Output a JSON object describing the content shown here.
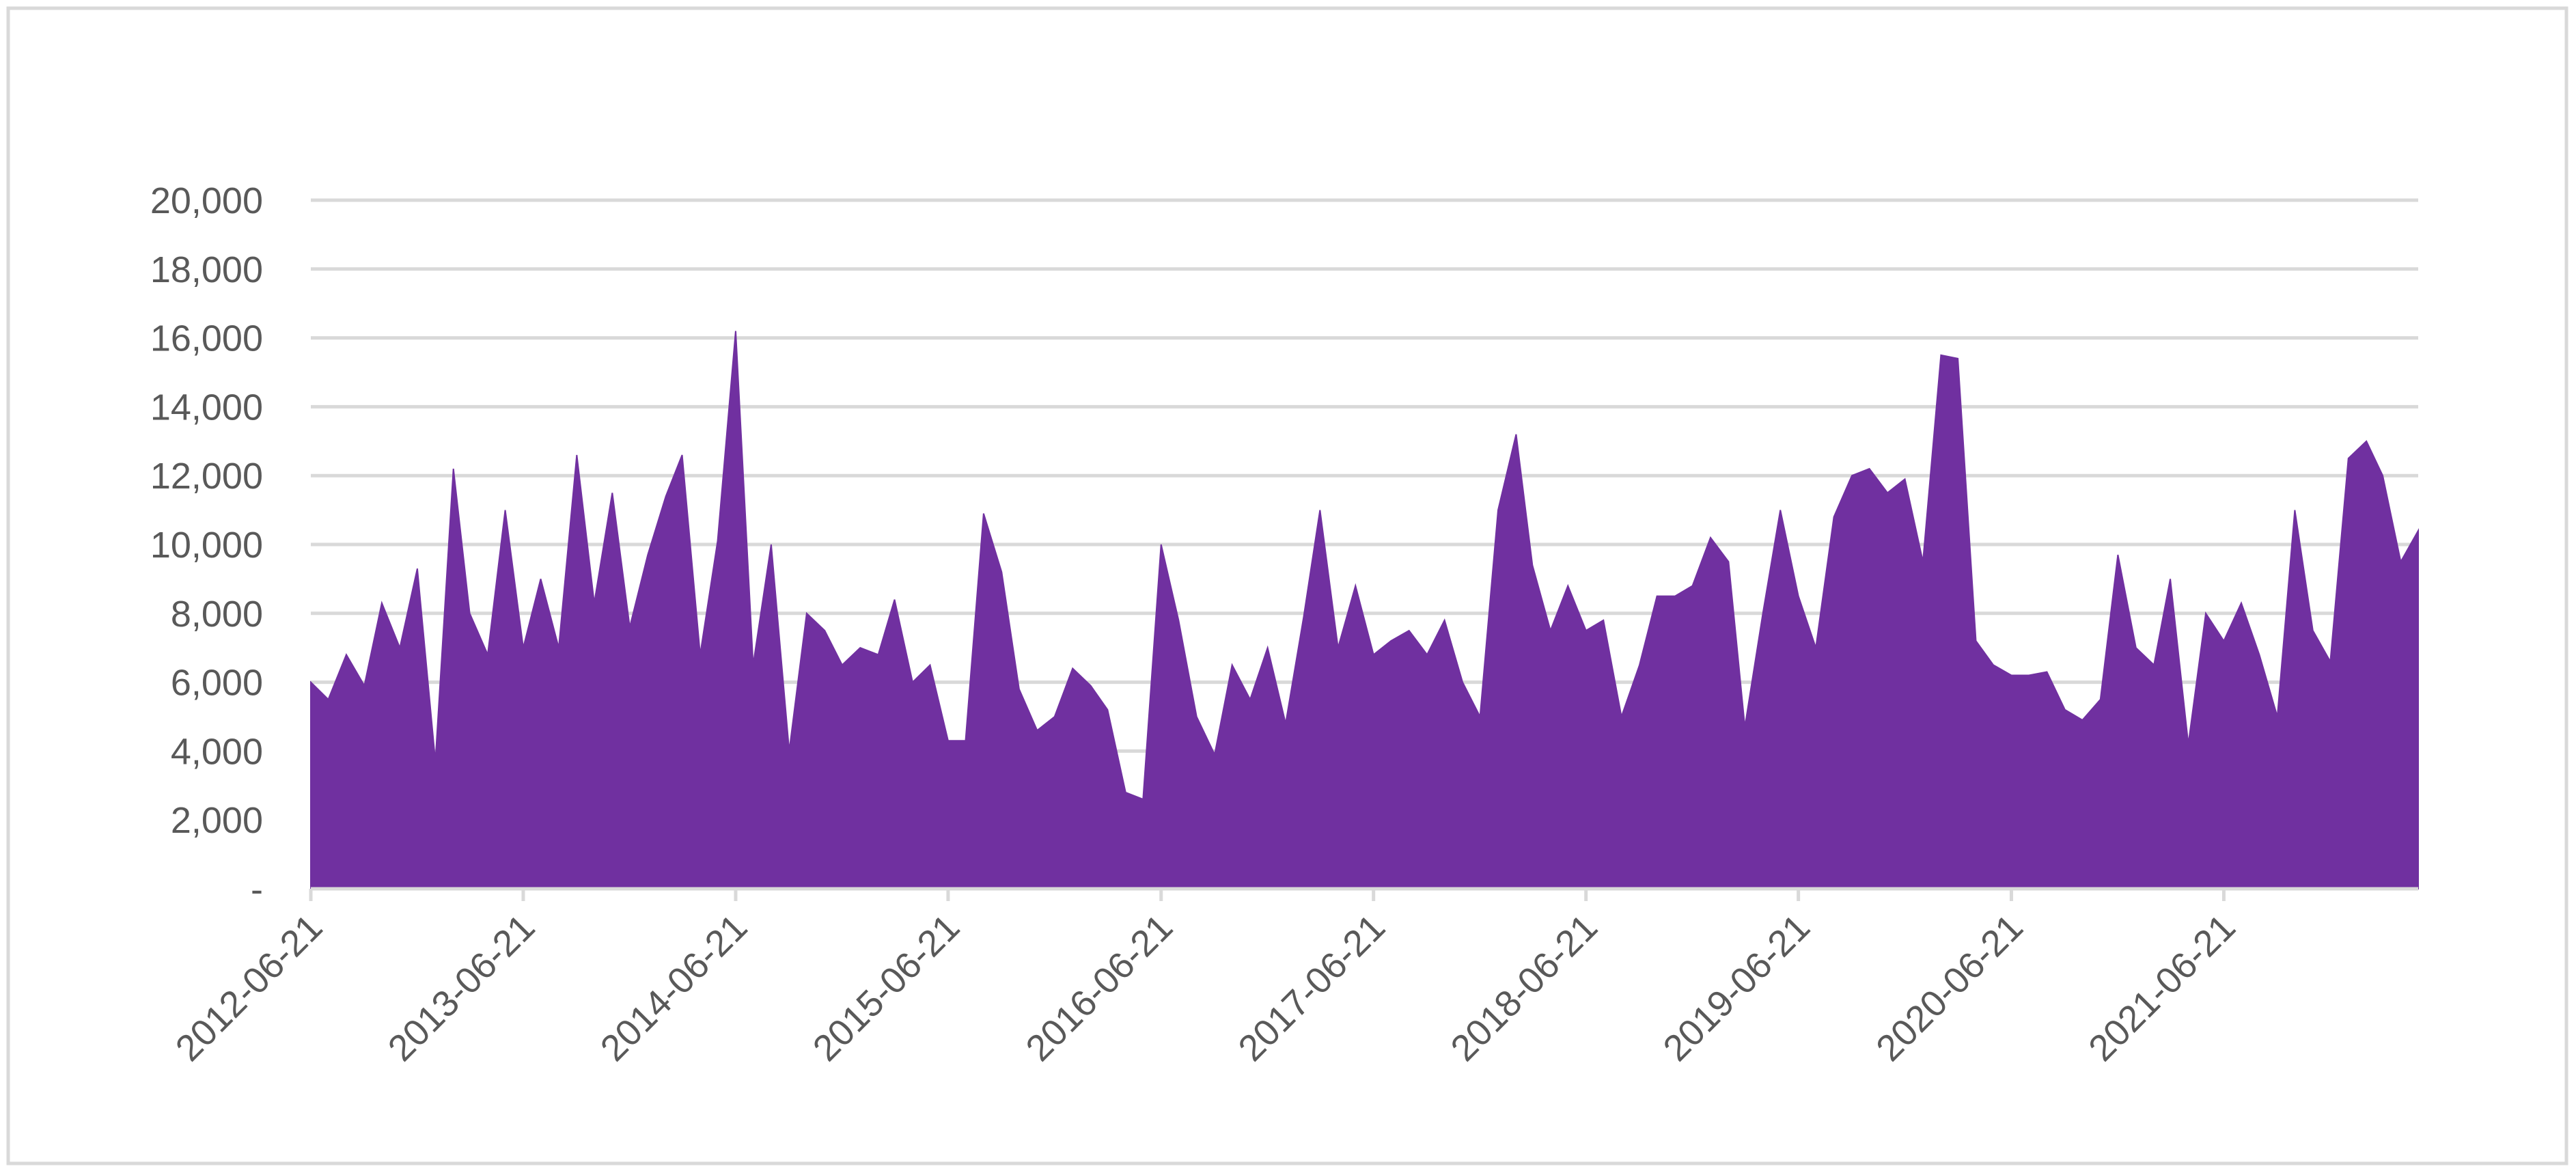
{
  "chart_data": {
    "type": "area",
    "color": "#7030a0",
    "grid": true,
    "x": [
      "2012-06-21",
      "2012-07-21",
      "2012-08-21",
      "2012-09-21",
      "2012-10-21",
      "2012-11-21",
      "2012-12-21",
      "2013-01-21",
      "2013-02-21",
      "2013-03-21",
      "2013-04-21",
      "2013-05-21",
      "2013-06-21",
      "2013-07-21",
      "2013-08-21",
      "2013-09-21",
      "2013-10-21",
      "2013-11-21",
      "2013-12-21",
      "2014-01-21",
      "2014-02-21",
      "2014-03-21",
      "2014-04-21",
      "2014-05-21",
      "2014-06-21",
      "2014-07-21",
      "2014-08-21",
      "2014-09-21",
      "2014-10-21",
      "2014-11-21",
      "2014-12-21",
      "2015-01-21",
      "2015-02-21",
      "2015-03-21",
      "2015-04-21",
      "2015-05-21",
      "2015-06-21",
      "2015-07-21",
      "2015-08-21",
      "2015-09-21",
      "2015-10-21",
      "2015-11-21",
      "2015-12-21",
      "2016-01-21",
      "2016-02-21",
      "2016-03-21",
      "2016-04-21",
      "2016-05-21",
      "2016-06-21",
      "2016-07-21",
      "2016-08-21",
      "2016-09-21",
      "2016-10-21",
      "2016-11-21",
      "2016-12-21",
      "2017-01-21",
      "2017-02-21",
      "2017-03-21",
      "2017-04-21",
      "2017-05-21",
      "2017-06-21",
      "2017-07-21",
      "2017-08-21",
      "2017-09-21",
      "2017-10-21",
      "2017-11-21",
      "2017-12-21",
      "2018-01-21",
      "2018-02-21",
      "2018-03-21",
      "2018-04-21",
      "2018-05-21",
      "2018-06-21",
      "2018-07-21",
      "2018-08-21",
      "2018-09-21",
      "2018-10-21",
      "2018-11-21",
      "2018-12-21",
      "2019-01-21",
      "2019-02-21",
      "2019-03-21",
      "2019-04-21",
      "2019-05-21",
      "2019-06-21",
      "2019-07-21",
      "2019-08-21",
      "2019-09-21",
      "2019-10-21",
      "2019-11-21",
      "2019-12-21",
      "2020-01-21",
      "2020-02-21",
      "2020-03-21",
      "2020-04-21",
      "2020-05-21",
      "2020-06-21",
      "2020-07-21",
      "2020-08-21",
      "2020-09-21",
      "2020-10-21",
      "2020-11-21",
      "2020-12-21",
      "2021-01-21",
      "2021-02-21",
      "2021-03-21",
      "2021-04-21",
      "2021-05-21",
      "2021-06-21",
      "2021-07-21",
      "2021-08-21",
      "2021-09-21",
      "2021-10-21",
      "2021-11-21",
      "2021-12-21",
      "2022-01-21",
      "2022-02-21",
      "2022-03-21",
      "2022-04-21",
      "2022-05-21"
    ],
    "values": [
      6000,
      5500,
      6800,
      5900,
      8300,
      7000,
      9300,
      3700,
      12200,
      8000,
      6800,
      11000,
      7000,
      9000,
      7000,
      12600,
      8300,
      11500,
      7600,
      9700,
      11400,
      12600,
      6800,
      10100,
      16200,
      6500,
      10000,
      4000,
      8000,
      7500,
      6500,
      7000,
      6800,
      8400,
      6000,
      6500,
      4300,
      4300,
      10900,
      9200,
      5800,
      4600,
      5000,
      6400,
      5900,
      5200,
      2800,
      2600,
      10000,
      7800,
      5000,
      3900,
      6500,
      5500,
      7000,
      4800,
      7900,
      11000,
      7000,
      8800,
      6800,
      7200,
      7500,
      6800,
      7800,
      6000,
      5000,
      11000,
      13200,
      9400,
      7500,
      8800,
      7500,
      7800,
      5000,
      6500,
      8500,
      8500,
      8800,
      10200,
      9500,
      4700,
      8000,
      11000,
      8500,
      7000,
      10800,
      12000,
      12200,
      11500,
      11900,
      9500,
      15500,
      15400,
      7200,
      6500,
      6200,
      6200,
      6300,
      5200,
      4900,
      5500,
      9700,
      7000,
      6500,
      9000,
      4200,
      8000,
      7200,
      8300,
      6800,
      5000,
      11000,
      7500,
      6600,
      12500,
      13000,
      12000,
      9500,
      10400
    ],
    "xlim": [
      "2012-06-21",
      "2022-05-21"
    ],
    "xticks": [
      "2012-06-21",
      "2013-06-21",
      "2014-06-21",
      "2015-06-21",
      "2016-06-21",
      "2017-06-21",
      "2018-06-21",
      "2019-06-21",
      "2020-06-21",
      "2021-06-21"
    ],
    "ylim": [
      0,
      20000
    ],
    "yticks": [
      {
        "value": 0,
        "label": "-"
      },
      {
        "value": 2000,
        "label": "2,000"
      },
      {
        "value": 4000,
        "label": "4,000"
      },
      {
        "value": 6000,
        "label": "6,000"
      },
      {
        "value": 8000,
        "label": "8,000"
      },
      {
        "value": 10000,
        "label": "10,000"
      },
      {
        "value": 12000,
        "label": "12,000"
      },
      {
        "value": 14000,
        "label": "14,000"
      },
      {
        "value": 16000,
        "label": "16,000"
      },
      {
        "value": 18000,
        "label": "18,000"
      },
      {
        "value": 20000,
        "label": "20,000"
      }
    ]
  }
}
